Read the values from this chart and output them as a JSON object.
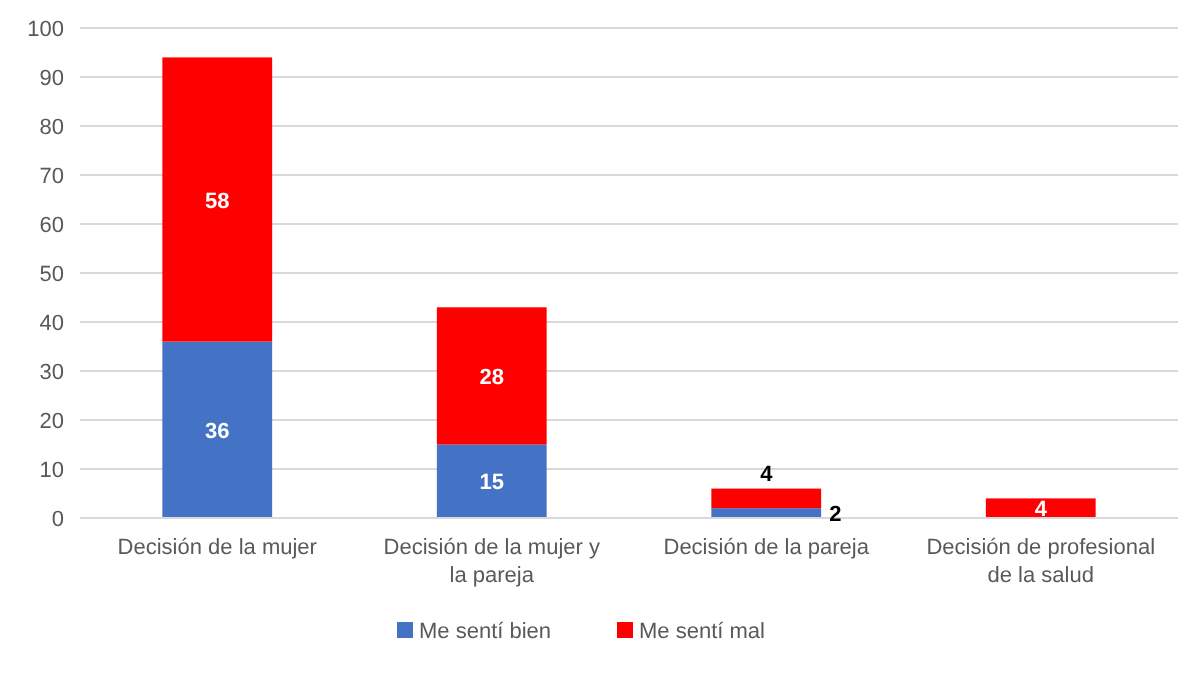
{
  "chart_data": {
    "type": "bar",
    "stacked": true,
    "categories": [
      "Decisión de la mujer",
      "Decisión de la mujer y la pareja",
      "Decisión de la pareja",
      "Decisión de profesional de la salud"
    ],
    "series": [
      {
        "name": "Me sentí bien",
        "color": "#4472c4",
        "values": [
          36,
          15,
          2,
          0
        ],
        "value_labels": [
          "36",
          "15",
          "2",
          null
        ]
      },
      {
        "name": "Me sentí mal",
        "color": "#ff0000",
        "values": [
          58,
          28,
          4,
          4
        ],
        "value_labels": [
          "58",
          "28",
          "4",
          "4"
        ]
      }
    ],
    "ylim": [
      0,
      100
    ],
    "yticks": [
      0,
      10,
      20,
      30,
      40,
      50,
      60,
      70,
      80,
      90,
      100
    ],
    "grid": "y",
    "legend": "bottom"
  }
}
